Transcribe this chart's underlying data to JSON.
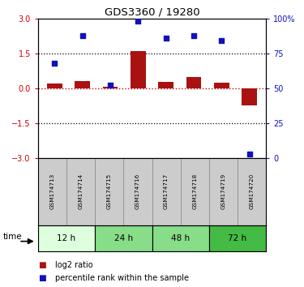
{
  "title": "GDS3360 / 19280",
  "samples": [
    "GSM174713",
    "GSM174714",
    "GSM174715",
    "GSM174716",
    "GSM174717",
    "GSM174718",
    "GSM174719",
    "GSM174720"
  ],
  "log2_ratio": [
    0.2,
    0.3,
    0.05,
    1.6,
    0.28,
    0.5,
    0.25,
    -0.75
  ],
  "percentile_rank": [
    68,
    88,
    52,
    98,
    86,
    88,
    84,
    3
  ],
  "ylim_left": [
    -3,
    3
  ],
  "ylim_right": [
    0,
    100
  ],
  "yticks_left": [
    -3,
    -1.5,
    0,
    1.5,
    3
  ],
  "yticks_right": [
    0,
    25,
    50,
    75,
    100
  ],
  "yticklabels_right": [
    "0",
    "25",
    "50",
    "75",
    "100%"
  ],
  "hlines": [
    1.5,
    -1.5
  ],
  "bar_color": "#aa1111",
  "dot_color": "#1111bb",
  "zero_line_color": "#cc0000",
  "time_groups": [
    {
      "label": "12 h",
      "start": 0,
      "end": 2,
      "color": "#ddffdd"
    },
    {
      "label": "24 h",
      "start": 2,
      "end": 4,
      "color": "#88dd88"
    },
    {
      "label": "48 h",
      "start": 4,
      "end": 6,
      "color": "#88dd88"
    },
    {
      "label": "72 h",
      "start": 6,
      "end": 8,
      "color": "#44bb44"
    }
  ],
  "legend_bar_label": "log2 ratio",
  "legend_dot_label": "percentile rank within the sample",
  "xlabel_time": "time",
  "background_color": "#ffffff",
  "plot_bg": "#ffffff",
  "label_color_left": "#cc0000",
  "label_color_right": "#1111bb",
  "sample_box_color": "#cccccc",
  "sample_border_color": "#888888"
}
